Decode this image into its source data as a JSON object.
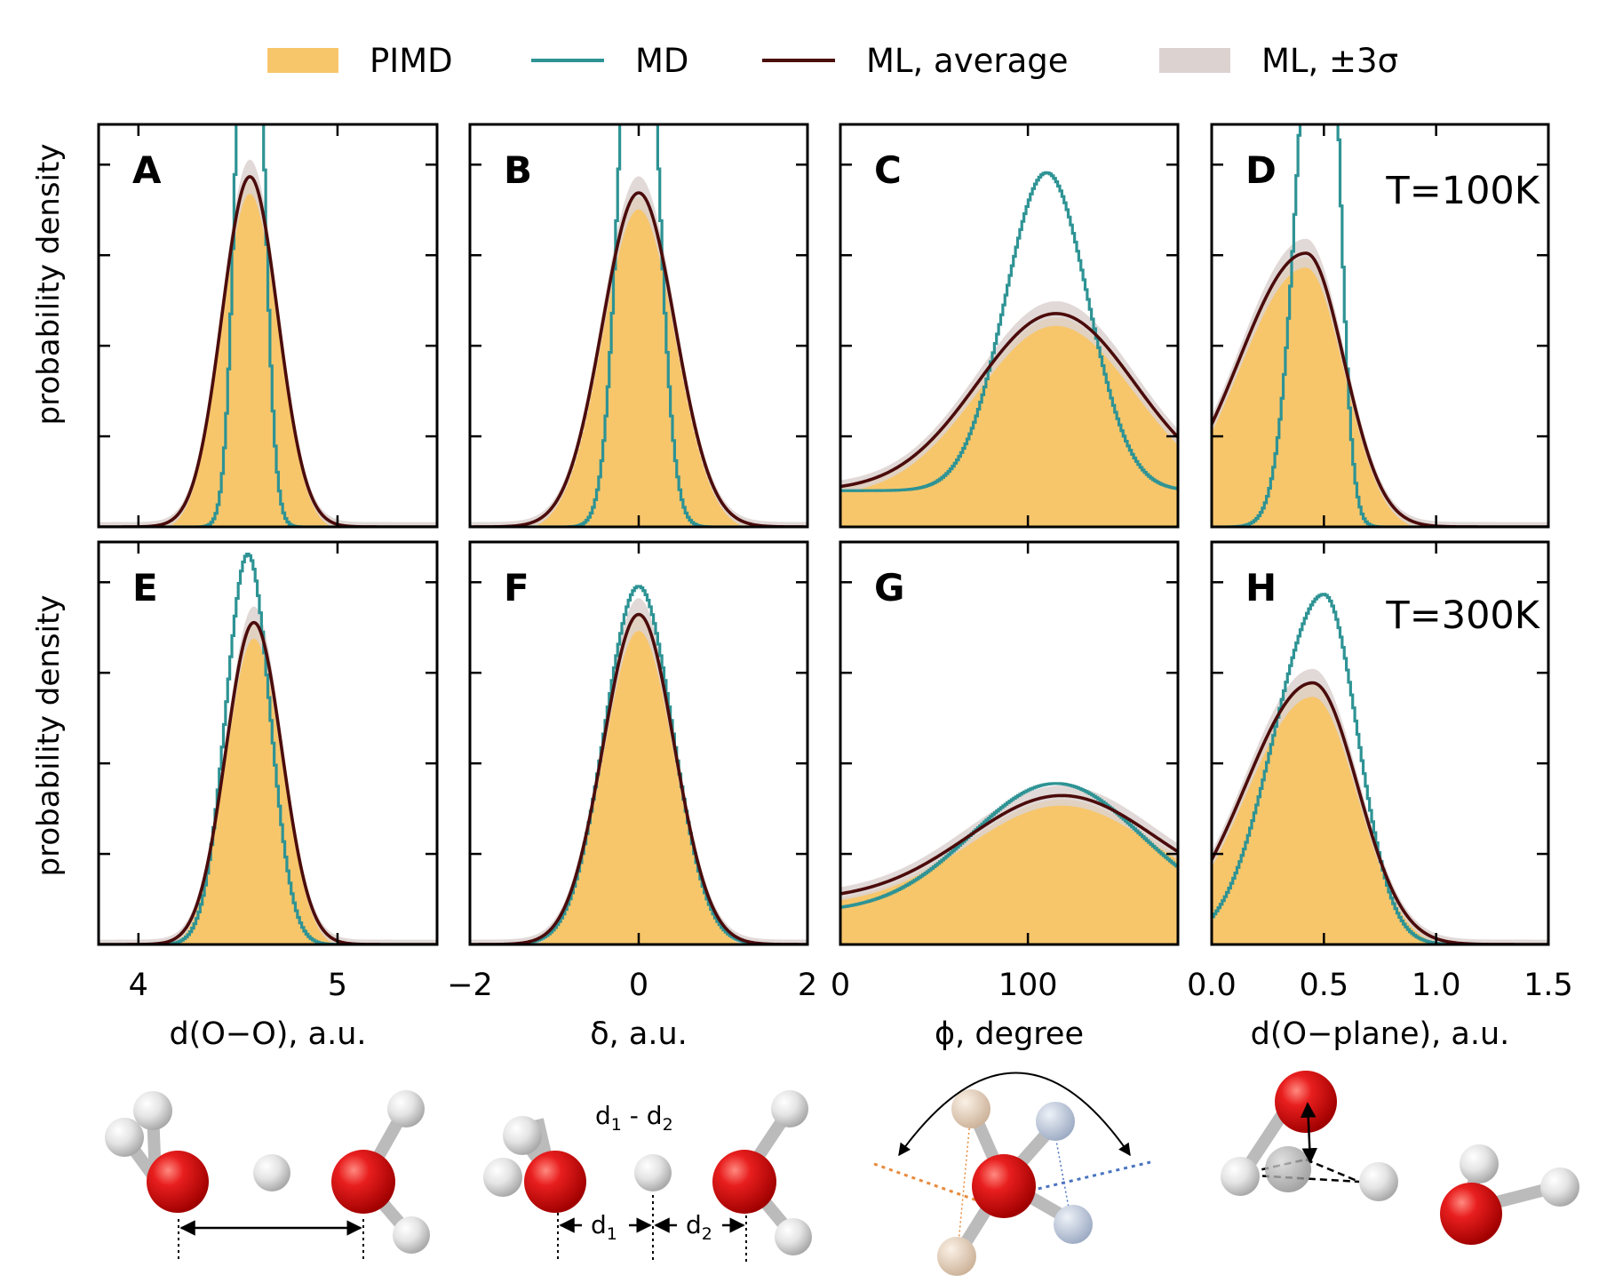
{
  "colors": {
    "pimd": "#f7c66b",
    "md": "#2e9394",
    "ml": "#4b0c0b",
    "band": "#dcd2d0",
    "axis": "#000000"
  },
  "legend": [
    "PIMD",
    "MD",
    "ML, average",
    "ML, ±3σ"
  ],
  "ylabel": "probability density",
  "temps": [
    "T=100K",
    "T=300K"
  ],
  "columns": [
    {
      "xlabel": "d(O−O), a.u.",
      "xlim": [
        3.8,
        5.5
      ],
      "ticks": [
        4,
        5
      ],
      "tick_labels": [
        "4",
        "5"
      ]
    },
    {
      "xlabel": "δ, a.u.",
      "xlim": [
        -2,
        2
      ],
      "ticks": [
        -2,
        0,
        2
      ],
      "tick_labels": [
        "−2",
        "0",
        "2"
      ]
    },
    {
      "xlabel": "ϕ, degree",
      "xlim": [
        0,
        180
      ],
      "ticks": [
        0,
        100
      ],
      "tick_labels": [
        "0",
        "100"
      ]
    },
    {
      "xlabel": "d(O−plane), a.u.",
      "xlim": [
        0,
        1.5
      ],
      "ticks": [
        0,
        0.5,
        1.0,
        1.5
      ],
      "tick_labels": [
        "0.0",
        "0.5",
        "1.0",
        "1.5"
      ]
    }
  ],
  "diagram_labels": {
    "d1_minus_d2": "d1 - d2",
    "d1": "d1",
    "d2": "d2"
  },
  "chart_data": [
    {
      "panel": "A",
      "type": "area",
      "xlabel": "d(O−O), a.u.",
      "xlim": [
        3.8,
        5.5
      ],
      "ylim": [
        0,
        1
      ],
      "series": [
        {
          "name": "PIMD",
          "kind": "gauss",
          "mu": 4.56,
          "sigma": 0.14,
          "amp": 0.86
        },
        {
          "name": "MD",
          "kind": "gauss",
          "mu": 4.56,
          "sigma": 0.06,
          "amp": 1.9
        },
        {
          "name": "ML, average",
          "kind": "gauss",
          "mu": 4.56,
          "sigma": 0.14,
          "amp": 0.87
        }
      ]
    },
    {
      "panel": "B",
      "type": "area",
      "xlabel": "δ, a.u.",
      "xlim": [
        -2,
        2
      ],
      "ylim": [
        0,
        1
      ],
      "series": [
        {
          "name": "PIMD",
          "kind": "gauss",
          "mu": 0.0,
          "sigma": 0.42,
          "amp": 0.82
        },
        {
          "name": "MD",
          "kind": "gauss",
          "mu": 0.0,
          "sigma": 0.2,
          "amp": 1.8
        },
        {
          "name": "ML, average",
          "kind": "gauss",
          "mu": 0.0,
          "sigma": 0.43,
          "amp": 0.83
        }
      ]
    },
    {
      "panel": "C",
      "type": "area",
      "xlabel": "ϕ, degree",
      "xlim": [
        0,
        180
      ],
      "ylim": [
        0,
        1
      ],
      "series": [
        {
          "name": "PIMD",
          "kind": "gauss",
          "mu": 115,
          "sigma": 42,
          "amp": 0.43,
          "base": 0.09
        },
        {
          "name": "MD",
          "kind": "gauss",
          "mu": 110,
          "sigma": 22,
          "amp": 0.79,
          "base": 0.09
        },
        {
          "name": "ML, average",
          "kind": "gauss",
          "mu": 115,
          "sigma": 42,
          "amp": 0.44,
          "base": 0.09
        }
      ]
    },
    {
      "panel": "D",
      "type": "area",
      "xlabel": "d(O−plane), a.u.",
      "xlim": [
        0,
        1.5
      ],
      "ylim": [
        0,
        1
      ],
      "series": [
        {
          "name": "PIMD",
          "kind": "skew",
          "mu": 0.42,
          "sl": 0.3,
          "sr": 0.17,
          "amp": 0.67
        },
        {
          "name": "MD",
          "kind": "skew",
          "mu": 0.5,
          "sl": 0.1,
          "sr": 0.06,
          "amp": 1.8
        },
        {
          "name": "ML, average",
          "kind": "skew",
          "mu": 0.42,
          "sl": 0.3,
          "sr": 0.17,
          "amp": 0.68
        }
      ]
    },
    {
      "panel": "E",
      "type": "area",
      "xlabel": "d(O−O), a.u.",
      "xlim": [
        3.8,
        5.5
      ],
      "ylim": [
        0,
        1
      ],
      "series": [
        {
          "name": "PIMD",
          "kind": "gauss",
          "mu": 4.58,
          "sigma": 0.14,
          "amp": 0.8
        },
        {
          "name": "MD",
          "kind": "gauss",
          "mu": 4.55,
          "sigma": 0.11,
          "amp": 0.97
        },
        {
          "name": "ML, average",
          "kind": "gauss",
          "mu": 4.58,
          "sigma": 0.14,
          "amp": 0.8
        }
      ]
    },
    {
      "panel": "F",
      "type": "area",
      "xlabel": "δ, a.u.",
      "xlim": [
        -2,
        2
      ],
      "ylim": [
        0,
        1
      ],
      "series": [
        {
          "name": "PIMD",
          "kind": "gauss",
          "mu": 0.0,
          "sigma": 0.42,
          "amp": 0.82
        },
        {
          "name": "MD",
          "kind": "gauss",
          "mu": 0.0,
          "sigma": 0.4,
          "amp": 0.89
        },
        {
          "name": "ML, average",
          "kind": "gauss",
          "mu": 0.0,
          "sigma": 0.42,
          "amp": 0.82
        }
      ]
    },
    {
      "panel": "G",
      "type": "area",
      "xlabel": "ϕ, degree",
      "xlim": [
        0,
        180
      ],
      "ylim": [
        0,
        1
      ],
      "series": [
        {
          "name": "PIMD",
          "kind": "gauss",
          "mu": 118,
          "sigma": 50,
          "amp": 0.26,
          "base": 0.1
        },
        {
          "name": "MD",
          "kind": "gauss",
          "mu": 115,
          "sigma": 45,
          "amp": 0.32,
          "base": 0.08
        },
        {
          "name": "ML, average",
          "kind": "gauss",
          "mu": 118,
          "sigma": 50,
          "amp": 0.26,
          "base": 0.11
        }
      ]
    },
    {
      "panel": "H",
      "type": "area",
      "xlabel": "d(O−plane), a.u.",
      "xlim": [
        0,
        1.5
      ],
      "ylim": [
        0,
        1
      ],
      "series": [
        {
          "name": "PIMD",
          "kind": "skew",
          "mu": 0.45,
          "sl": 0.3,
          "sr": 0.2,
          "amp": 0.65
        },
        {
          "name": "MD",
          "kind": "skew",
          "mu": 0.5,
          "sl": 0.22,
          "sr": 0.15,
          "amp": 0.87
        },
        {
          "name": "ML, average",
          "kind": "skew",
          "mu": 0.45,
          "sl": 0.3,
          "sr": 0.2,
          "amp": 0.65
        }
      ]
    }
  ]
}
